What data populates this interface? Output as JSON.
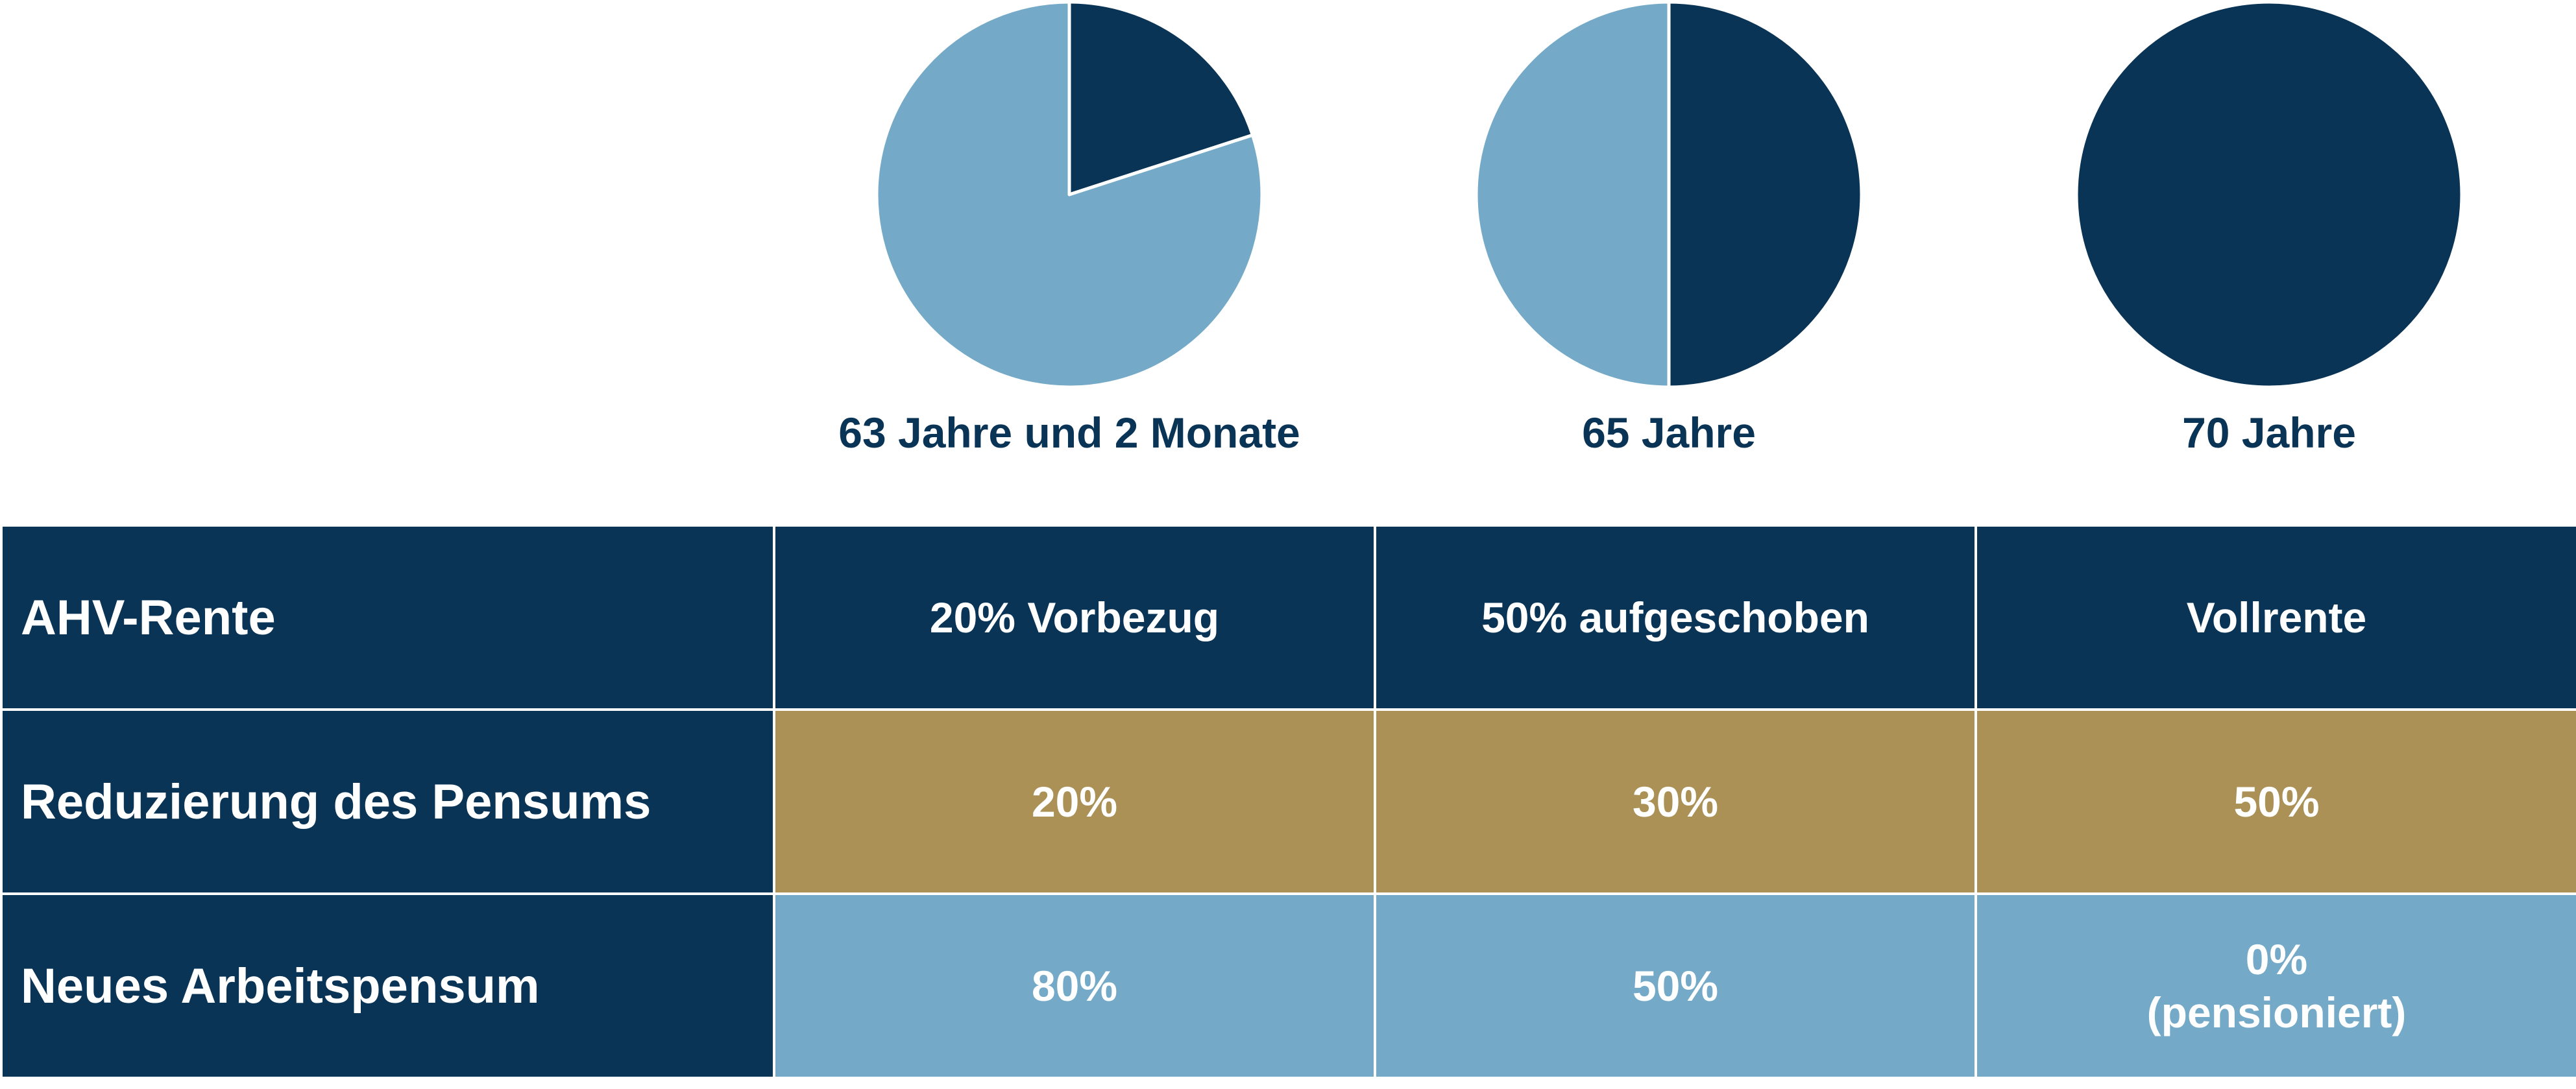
{
  "colors": {
    "dark": "#0a3456",
    "light": "#74aac7",
    "gold": "#ab9155",
    "white": "#ffffff"
  },
  "chart_data": {
    "type": "pie",
    "charts": [
      {
        "label": "63 Jahre und 2 Monate",
        "slices": [
          {
            "value": 20,
            "color": "#0a3456"
          },
          {
            "value": 80,
            "color": "#74aac7"
          }
        ]
      },
      {
        "label": "65 Jahre",
        "slices": [
          {
            "value": 50,
            "color": "#0a3456"
          },
          {
            "value": 50,
            "color": "#74aac7"
          }
        ]
      },
      {
        "label": "70 Jahre",
        "slices": [
          {
            "value": 100,
            "color": "#0a3456"
          }
        ]
      }
    ]
  },
  "table": {
    "rows": [
      {
        "label": "AHV-Rente",
        "style": "hdr",
        "cells": [
          [
            "20% Vorbezug"
          ],
          [
            "50% aufgeschoben"
          ],
          [
            "Vollrente"
          ]
        ]
      },
      {
        "label": "Reduzierung des Pensums",
        "style": "gold",
        "cells": [
          [
            "20%"
          ],
          [
            "30%"
          ],
          [
            "50%"
          ]
        ]
      },
      {
        "label": "Neues Arbeitspensum",
        "style": "blue",
        "cells": [
          [
            "80%"
          ],
          [
            "50%"
          ],
          [
            "0%",
            "(pensioniert)"
          ]
        ]
      }
    ]
  }
}
